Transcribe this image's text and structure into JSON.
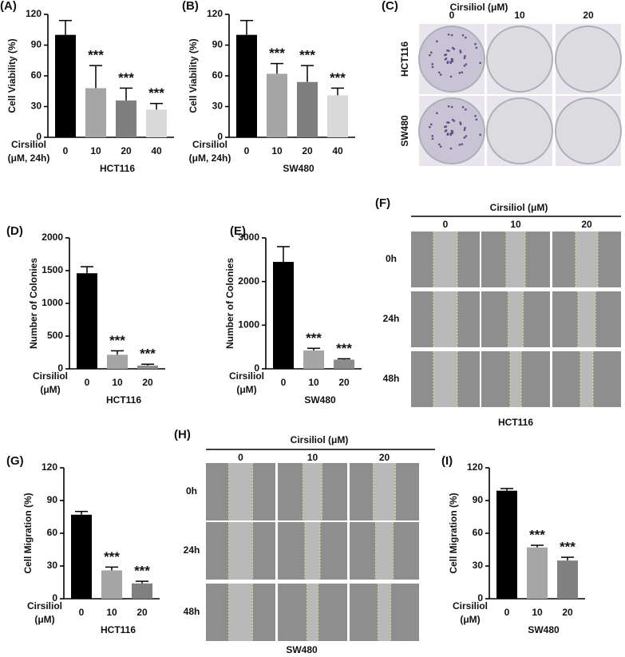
{
  "chart_data": [
    {
      "type": "bar",
      "label": "(A)",
      "ylabel": "Cell Viability (%)",
      "x_prefix": [
        "Cirsiliol",
        "(μM, 24h)"
      ],
      "xlabel": "HCT116",
      "categories": [
        "0",
        "10",
        "20",
        "40"
      ],
      "values": [
        100,
        48,
        36,
        27
      ],
      "errors": [
        14,
        22,
        12,
        6
      ],
      "colors": [
        "#000000",
        "#a6a6a6",
        "#7f7f7f",
        "#d9d9d9"
      ],
      "significance": [
        null,
        "***",
        "***",
        "***"
      ],
      "ylim": [
        0,
        120
      ],
      "yticks": [
        0,
        30,
        60,
        90,
        120
      ]
    },
    {
      "type": "bar",
      "label": "(B)",
      "ylabel": "Cell Viability (%)",
      "x_prefix": [
        "Cirsiliol",
        "(μM, 24h)"
      ],
      "xlabel": "SW480",
      "categories": [
        "0",
        "10",
        "20",
        "40"
      ],
      "values": [
        100,
        62,
        54,
        41
      ],
      "errors": [
        14,
        10,
        16,
        7
      ],
      "colors": [
        "#000000",
        "#a6a6a6",
        "#7f7f7f",
        "#d9d9d9"
      ],
      "significance": [
        null,
        "***",
        "***",
        "***"
      ],
      "ylim": [
        0,
        120
      ],
      "yticks": [
        0,
        30,
        60,
        90,
        120
      ]
    },
    {
      "type": "bar",
      "label": "(D)",
      "ylabel": "Number of Colonies",
      "x_prefix": [
        "Cirsiliol",
        "(μM)"
      ],
      "xlabel": "HCT116",
      "categories": [
        "0",
        "10",
        "20"
      ],
      "values": [
        1460,
        215,
        50
      ],
      "errors": [
        100,
        60,
        20
      ],
      "colors": [
        "#000000",
        "#a6a6a6",
        "#8c8c8c"
      ],
      "significance": [
        null,
        "***",
        "***"
      ],
      "ylim": [
        0,
        2000
      ],
      "yticks": [
        0,
        500,
        1000,
        1500,
        2000
      ]
    },
    {
      "type": "bar",
      "label": "(E)",
      "ylabel": "Number of Colonies",
      "x_prefix": [
        "Cirsiliol",
        "(μM)"
      ],
      "xlabel": "SW480",
      "categories": [
        "0",
        "10",
        "20"
      ],
      "values": [
        2450,
        420,
        210
      ],
      "errors": [
        350,
        50,
        20
      ],
      "colors": [
        "#000000",
        "#a6a6a6",
        "#8c8c8c"
      ],
      "significance": [
        null,
        "***",
        "***"
      ],
      "ylim": [
        0,
        3000
      ],
      "yticks": [
        0,
        1000,
        2000,
        3000
      ]
    },
    {
      "type": "bar",
      "label": "(G)",
      "ylabel": "Cell Migration (%)",
      "x_prefix": [
        "Cirsiliol",
        "(μM)"
      ],
      "xlabel": "HCT116",
      "categories": [
        "0",
        "10",
        "20"
      ],
      "values": [
        77,
        26,
        14
      ],
      "errors": [
        3,
        3,
        2
      ],
      "colors": [
        "#000000",
        "#a6a6a6",
        "#808080"
      ],
      "significance": [
        null,
        "***",
        "***"
      ],
      "ylim": [
        0,
        120
      ],
      "yticks": [
        0,
        30,
        60,
        90,
        120
      ]
    },
    {
      "type": "bar",
      "label": "(I)",
      "ylabel": "Cell Migration (%)",
      "x_prefix": [
        "Cirsiliol",
        "(μM)"
      ],
      "xlabel": "SW480",
      "categories": [
        "0",
        "10",
        "20"
      ],
      "values": [
        99,
        47,
        35
      ],
      "errors": [
        2,
        2,
        3
      ],
      "colors": [
        "#000000",
        "#a6a6a6",
        "#808080"
      ],
      "significance": [
        null,
        "***",
        "***"
      ],
      "ylim": [
        0,
        120
      ],
      "yticks": [
        0,
        30,
        60,
        90,
        120
      ]
    }
  ],
  "image_panels": [
    {
      "label": "(C)",
      "title": "Cirsiliol (μM)",
      "columns": [
        "0",
        "10",
        "20"
      ],
      "rows": [
        "HCT116",
        "SW480"
      ]
    },
    {
      "label": "(F)",
      "title": "Cirsiliol (μM)",
      "columns": [
        "0",
        "10",
        "20"
      ],
      "rows": [
        "0h",
        "24h",
        "48h"
      ],
      "caption": "HCT116"
    },
    {
      "label": "(H)",
      "title": "Cirsiliol (μM)",
      "columns": [
        "0",
        "10",
        "20"
      ],
      "rows": [
        "0h",
        "24h",
        "48h"
      ],
      "caption": "SW480"
    }
  ]
}
